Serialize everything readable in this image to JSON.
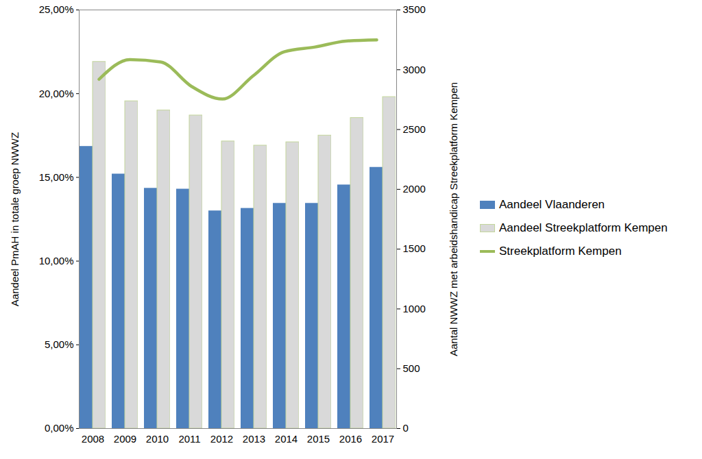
{
  "chart_data": {
    "type": "bar",
    "categories": [
      "2008",
      "2009",
      "2010",
      "2011",
      "2012",
      "2013",
      "2014",
      "2015",
      "2016",
      "2017"
    ],
    "series": [
      {
        "name": "Aandeel Vlaanderen",
        "color": "#4f81bd",
        "values": [
          16.85,
          15.2,
          14.35,
          14.3,
          13.0,
          13.15,
          13.45,
          13.45,
          14.55,
          15.6
        ]
      },
      {
        "name": "Aandeel Streekplatform Kempen",
        "color": "#d9d9d9",
        "values": [
          21.9,
          19.55,
          19.0,
          18.7,
          17.15,
          16.9,
          17.1,
          17.5,
          18.55,
          19.8
        ]
      },
      {
        "name": "Streekplatform Kempen",
        "type": "line",
        "axis": "y2",
        "color": "#9bbb59",
        "values": [
          2920,
          3085,
          3065,
          2860,
          2755,
          2950,
          3150,
          3190,
          3240,
          3250
        ]
      }
    ],
    "y_label": "Aandeel PmAH in totale groep NWWZ",
    "y2_label": "Aantal NWWZ met arbeidshandicap Streekplatform Kempen",
    "ylim": [
      0,
      25
    ],
    "yticks": [
      {
        "value": 0,
        "label": "0,00%"
      },
      {
        "value": 5,
        "label": "5,00%"
      },
      {
        "value": 10,
        "label": "10,00%"
      },
      {
        "value": 15,
        "label": "15,00%"
      },
      {
        "value": 20,
        "label": "20,00%"
      },
      {
        "value": 25,
        "label": "25,00%"
      }
    ],
    "y2lim": [
      0,
      3500
    ],
    "y2ticks": [
      0,
      500,
      1000,
      1500,
      2000,
      2500,
      3000,
      3500
    ],
    "legend": "right"
  }
}
